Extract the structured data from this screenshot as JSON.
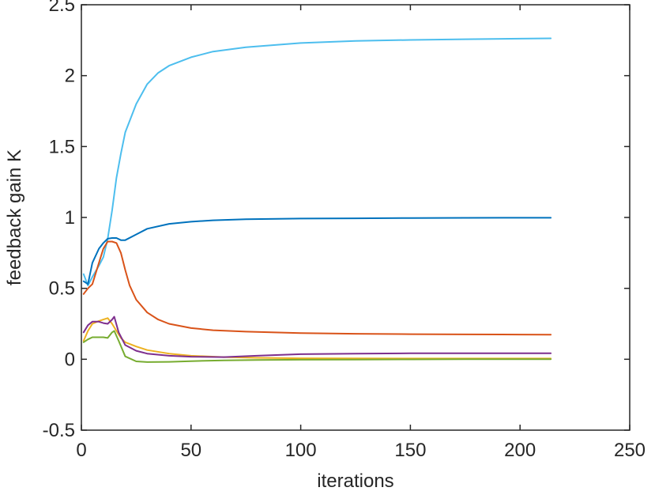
{
  "chart_data": {
    "type": "line",
    "title": "",
    "xlabel": "iterations",
    "ylabel": "feedback gain K",
    "xlim": [
      0,
      250
    ],
    "ylim": [
      -0.5,
      2.5
    ],
    "xticks": [
      0,
      50,
      100,
      150,
      200,
      250
    ],
    "yticks": [
      -0.5,
      0,
      0.5,
      1,
      1.5,
      2,
      2.5
    ],
    "xtick_labels": [
      "0",
      "50",
      "100",
      "150",
      "200",
      "250"
    ],
    "ytick_labels": [
      "-0.5",
      "0",
      "0.5",
      "1",
      "1.5",
      "2",
      "2.5"
    ],
    "grid": false,
    "legend": "none",
    "series": [
      {
        "color": "#4DBEEE",
        "x": [
          1,
          3,
          5,
          8,
          10,
          12,
          14,
          16,
          18,
          20,
          25,
          30,
          35,
          40,
          50,
          60,
          75,
          100,
          125,
          150,
          175,
          200,
          214
        ],
        "y": [
          0.6,
          0.52,
          0.58,
          0.66,
          0.72,
          0.85,
          1.05,
          1.28,
          1.45,
          1.6,
          1.8,
          1.94,
          2.02,
          2.07,
          2.13,
          2.17,
          2.2,
          2.23,
          2.245,
          2.252,
          2.257,
          2.261,
          2.263
        ]
      },
      {
        "color": "#0072BD",
        "x": [
          1,
          3,
          5,
          8,
          10,
          12,
          14,
          16,
          18,
          20,
          25,
          30,
          40,
          50,
          60,
          75,
          100,
          125,
          150,
          175,
          200,
          214
        ],
        "y": [
          0.55,
          0.53,
          0.68,
          0.78,
          0.82,
          0.85,
          0.855,
          0.855,
          0.84,
          0.84,
          0.88,
          0.92,
          0.955,
          0.97,
          0.98,
          0.988,
          0.992,
          0.994,
          0.996,
          0.997,
          0.998,
          0.998
        ]
      },
      {
        "color": "#D95319",
        "x": [
          1,
          3,
          5,
          8,
          10,
          12,
          14,
          16,
          18,
          20,
          22,
          25,
          30,
          35,
          40,
          50,
          60,
          75,
          100,
          125,
          150,
          175,
          200,
          214
        ],
        "y": [
          0.46,
          0.5,
          0.53,
          0.68,
          0.78,
          0.83,
          0.83,
          0.82,
          0.75,
          0.63,
          0.52,
          0.42,
          0.33,
          0.28,
          0.25,
          0.22,
          0.205,
          0.195,
          0.185,
          0.18,
          0.177,
          0.175,
          0.174,
          0.173
        ]
      },
      {
        "color": "#EDB120",
        "x": [
          1,
          3,
          5,
          8,
          10,
          12,
          14,
          16,
          18,
          20,
          25,
          30,
          40,
          50,
          65,
          80,
          100,
          125,
          150,
          175,
          200,
          214
        ],
        "y": [
          0.13,
          0.2,
          0.25,
          0.27,
          0.28,
          0.29,
          0.25,
          0.2,
          0.15,
          0.12,
          0.09,
          0.065,
          0.04,
          0.025,
          0.015,
          0.01,
          0.007,
          0.006,
          0.005,
          0.005,
          0.005,
          0.005
        ]
      },
      {
        "color": "#7E2F8E",
        "x": [
          1,
          3,
          5,
          8,
          10,
          12,
          14,
          15,
          17,
          20,
          25,
          30,
          40,
          50,
          65,
          80,
          100,
          125,
          150,
          175,
          200,
          214
        ],
        "y": [
          0.19,
          0.24,
          0.265,
          0.265,
          0.255,
          0.25,
          0.28,
          0.3,
          0.19,
          0.1,
          0.06,
          0.04,
          0.025,
          0.018,
          0.015,
          0.025,
          0.036,
          0.04,
          0.042,
          0.042,
          0.042,
          0.042
        ]
      },
      {
        "color": "#77AC30",
        "x": [
          1,
          3,
          5,
          8,
          10,
          12,
          13,
          14,
          15,
          17,
          20,
          25,
          30,
          40,
          50,
          65,
          80,
          100,
          125,
          150,
          175,
          200,
          214
        ],
        "y": [
          0.12,
          0.14,
          0.155,
          0.155,
          0.155,
          0.15,
          0.17,
          0.19,
          0.2,
          0.13,
          0.02,
          -0.015,
          -0.02,
          -0.018,
          -0.013,
          -0.008,
          -0.005,
          -0.003,
          -0.002,
          -0.001,
          0.0,
          0.0,
          0.0
        ]
      }
    ]
  }
}
